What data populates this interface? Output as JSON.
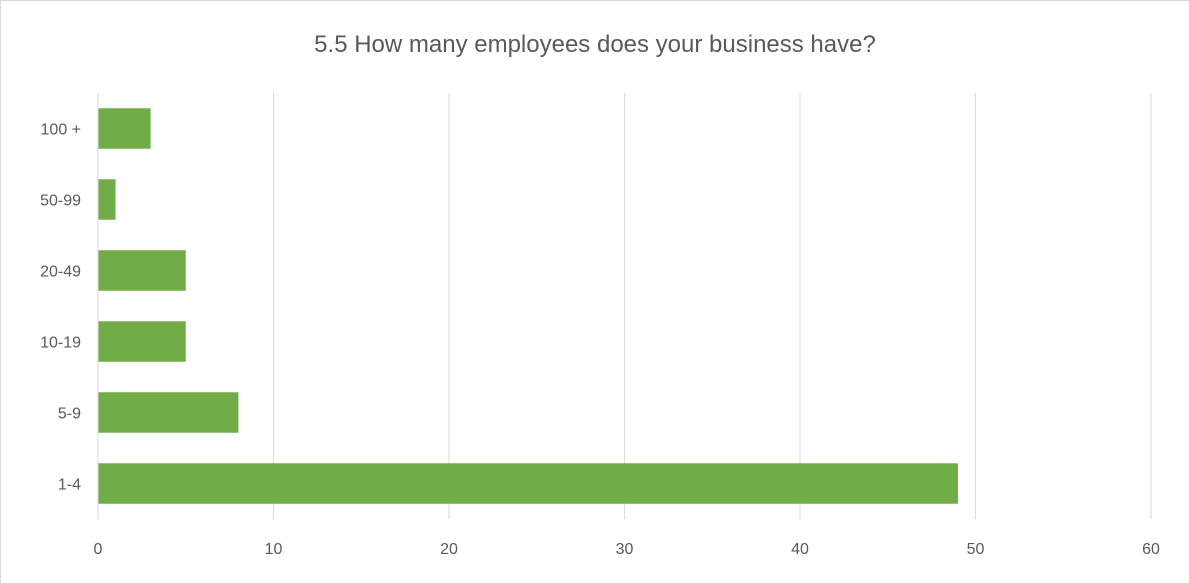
{
  "chart_data": {
    "type": "bar",
    "orientation": "horizontal",
    "title": "5.5 How many employees does your business have?",
    "categories": [
      "1-4",
      "5-9",
      "10-19",
      "20-49",
      "50-99",
      "100 +"
    ],
    "values": [
      49,
      8,
      5,
      5,
      1,
      3
    ],
    "xlim": [
      0,
      60
    ],
    "xticks": [
      "0",
      "10",
      "20",
      "30",
      "40",
      "50",
      "60"
    ],
    "grid": "vertical",
    "legend": "none",
    "bar_color": "#70ad47",
    "grid_color": "#d9d9d9",
    "text_color": "#595959"
  }
}
